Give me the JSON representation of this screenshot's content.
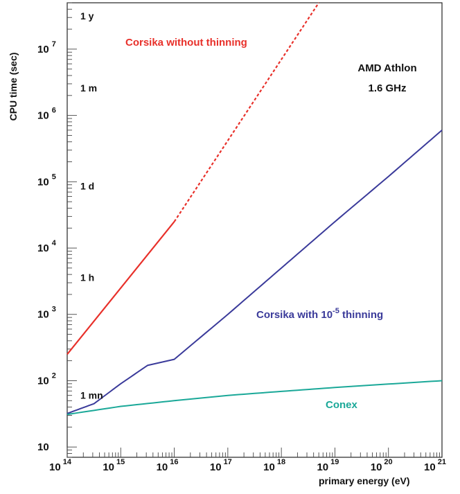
{
  "chart_data": {
    "type": "line",
    "xlabel": "primary energy (eV)",
    "ylabel": "CPU time (sec)",
    "xscale": "log",
    "yscale": "log",
    "xlim": [
      100000000000000.0,
      1e+21
    ],
    "ylim": [
      7,
      50000000.0
    ],
    "x_tick_labels": [
      {
        "value": 100000000000000.0,
        "base": "10",
        "exp": "14"
      },
      {
        "value": 1000000000000000.0,
        "base": "10",
        "exp": "15"
      },
      {
        "value": 1e+16,
        "base": "10",
        "exp": "16"
      },
      {
        "value": 1e+17,
        "base": "10",
        "exp": "17"
      },
      {
        "value": 1e+18,
        "base": "10",
        "exp": "18"
      },
      {
        "value": 1e+19,
        "base": "10",
        "exp": "19"
      },
      {
        "value": 1e+20,
        "base": "10",
        "exp": "20"
      },
      {
        "value": 1e+21,
        "base": "10",
        "exp": "21"
      }
    ],
    "y_tick_labels": [
      {
        "value": 10,
        "base": "10",
        "exp": ""
      },
      {
        "value": 100,
        "base": "10",
        "exp": "2"
      },
      {
        "value": 1000,
        "base": "10",
        "exp": "3"
      },
      {
        "value": 10000,
        "base": "10",
        "exp": "4"
      },
      {
        "value": 100000,
        "base": "10",
        "exp": "5"
      },
      {
        "value": 1000000,
        "base": "10",
        "exp": "6"
      },
      {
        "value": 10000000,
        "base": "10",
        "exp": "7"
      }
    ],
    "time_markers": [
      {
        "label": "1 mn",
        "value": 60
      },
      {
        "label": "1 h",
        "value": 3600
      },
      {
        "label": "1 d",
        "value": 86400
      },
      {
        "label": "1 m",
        "value": 2592000
      },
      {
        "label": "1 y",
        "value": 31536000
      }
    ],
    "series": [
      {
        "label": "Corsika without thinning",
        "color": "#e8302a",
        "segments": [
          {
            "style": "solid",
            "x": [
              100000000000000.0,
              1e+16
            ],
            "y": [
              250,
              25000
            ]
          },
          {
            "style": "dashed",
            "x": [
              1e+16,
              5e+18
            ],
            "y": [
              25000,
              50000000.0
            ]
          }
        ]
      },
      {
        "label_prefix": "Corsika with 10",
        "label_exp": "-5",
        "label_suffix": " thinning",
        "color": "#3a3a9a",
        "x": [
          100000000000000.0,
          316000000000000.0,
          1000000000000000.0,
          3160000000000000.0,
          1e+16,
          1e+17,
          1e+18,
          1e+19,
          1e+20,
          1e+21
        ],
        "y": [
          32,
          45,
          90,
          170,
          210,
          1000,
          5000,
          25000,
          120000,
          600000
        ]
      },
      {
        "label": "Conex",
        "color": "#1aa898",
        "x": [
          100000000000000.0,
          1000000000000000.0,
          1e+16,
          1e+17,
          1e+18,
          1e+19,
          1e+20,
          1e+21
        ],
        "y": [
          31,
          41,
          50,
          60,
          69,
          79,
          89,
          100
        ]
      }
    ],
    "annotations": [
      {
        "line1": "AMD Athlon",
        "line2": "1.6 GHz"
      }
    ]
  }
}
